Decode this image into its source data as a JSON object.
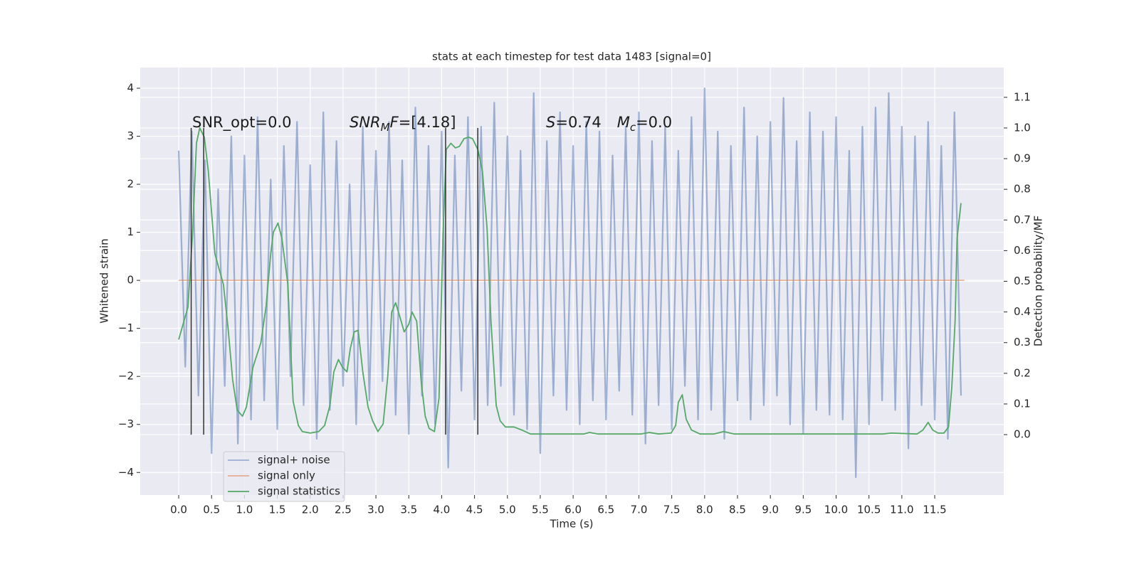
{
  "chart_data": {
    "type": "line",
    "title": "stats at each timestep for test data 1483 [signal=0]",
    "xlabel": "Time (s)",
    "ylabel": "Whitened strain",
    "y2label": "Detection probability/MF",
    "xlim": [
      -0.585,
      12.55
    ],
    "ylim": [
      -4.47,
      4.43
    ],
    "y2lim": [
      -0.197,
      1.197
    ],
    "xticks": [
      {
        "value": 0,
        "label": "0.0"
      },
      0.5,
      {
        "value": 1,
        "label": "1.0"
      },
      1.5,
      {
        "value": 2,
        "label": "2.0"
      },
      2.5,
      {
        "value": 3,
        "label": "3.0"
      },
      3.5,
      {
        "value": 4,
        "label": "4.0"
      },
      4.5,
      {
        "value": 5,
        "label": "5.0"
      },
      5.5,
      {
        "value": 6,
        "label": "6.0"
      },
      6.5,
      {
        "value": 7,
        "label": "7.0"
      },
      7.5,
      {
        "value": 8,
        "label": "8.0"
      },
      8.5,
      {
        "value": 9,
        "label": "9.0"
      },
      9.5,
      {
        "value": 10,
        "label": "10.0"
      },
      10.5,
      {
        "value": 11,
        "label": "11.0"
      },
      11.5
    ],
    "yticks": [
      {
        "value": -4,
        "label": "−4"
      },
      {
        "value": -3,
        "label": "−3"
      },
      {
        "value": -2,
        "label": "−2"
      },
      {
        "value": -1,
        "label": "−1"
      },
      0,
      1,
      2,
      3,
      4
    ],
    "y2ticks": [
      {
        "value": 0,
        "label": "0.0"
      },
      0.1,
      0.2,
      0.3,
      0.4,
      0.5,
      0.6,
      0.7,
      0.8,
      0.9,
      {
        "value": 1,
        "label": "1.0"
      },
      1.1
    ],
    "grid": true,
    "legend": "lower left",
    "series": [
      {
        "name": "signal+ noise",
        "color": "#4c72b0",
        "opacity": 0.5,
        "x": [
          0.0,
          0.1,
          0.2,
          0.3,
          0.4,
          0.5,
          0.6,
          0.7,
          0.8,
          0.9,
          1.0,
          1.1,
          1.2,
          1.3,
          1.4,
          1.5,
          1.6,
          1.7,
          1.8,
          1.9,
          2.0,
          2.1,
          2.2,
          2.3,
          2.4,
          2.5,
          2.6,
          2.7,
          2.8,
          2.9,
          3.0,
          3.1,
          3.2,
          3.3,
          3.4,
          3.5,
          3.6,
          3.7,
          3.8,
          3.9,
          4.0,
          4.1,
          4.2,
          4.3,
          4.4,
          4.5,
          4.6,
          4.7,
          4.8,
          4.9,
          5.0,
          5.1,
          5.2,
          5.3,
          5.4,
          5.5,
          5.6,
          5.7,
          5.8,
          5.9,
          6.0,
          6.1,
          6.2,
          6.3,
          6.4,
          6.5,
          6.6,
          6.7,
          6.8,
          6.9,
          7.0,
          7.1,
          7.2,
          7.3,
          7.4,
          7.5,
          7.6,
          7.7,
          7.8,
          7.9,
          8.0,
          8.1,
          8.2,
          8.3,
          8.4,
          8.5,
          8.6,
          8.7,
          8.8,
          8.9,
          9.0,
          9.1,
          9.2,
          9.3,
          9.4,
          9.5,
          9.6,
          9.7,
          9.8,
          9.9,
          10.0,
          10.1,
          10.2,
          10.3,
          10.4,
          10.5,
          10.6,
          10.7,
          10.8,
          10.9,
          11.0,
          11.1,
          11.2,
          11.3,
          11.4,
          11.5,
          11.6,
          11.7,
          11.8,
          11.9
        ],
        "values": [
          2.7,
          -1.8,
          3.1,
          -2.4,
          2.5,
          -3.6,
          1.9,
          -2.2,
          3.0,
          -3.4,
          2.6,
          -2.9,
          3.4,
          -2.5,
          2.1,
          -3.1,
          2.8,
          -2.0,
          3.3,
          -2.6,
          2.4,
          -3.3,
          3.5,
          -2.7,
          2.9,
          -2.2,
          2.0,
          -3.0,
          3.2,
          -2.5,
          2.7,
          -2.1,
          3.3,
          -2.8,
          2.5,
          -3.2,
          3.6,
          -2.4,
          2.8,
          -3.0,
          3.1,
          -3.9,
          2.6,
          -2.3,
          3.4,
          -2.9,
          3.2,
          -2.6,
          3.7,
          -2.2,
          3.0,
          -2.8,
          2.7,
          -3.1,
          3.9,
          -3.6,
          2.9,
          -2.4,
          3.5,
          -2.7,
          2.8,
          -3.0,
          3.3,
          -2.5,
          3.1,
          -2.9,
          2.6,
          -2.3,
          3.2,
          -2.8,
          3.5,
          -3.4,
          2.9,
          -2.6,
          3.2,
          -3.1,
          2.7,
          -2.2,
          3.4,
          -2.9,
          4.0,
          -2.7,
          3.1,
          -3.3,
          2.8,
          -2.5,
          3.6,
          -2.9,
          3.0,
          -2.6,
          3.3,
          -2.4,
          3.8,
          -3.0,
          2.9,
          -3.2,
          3.5,
          -2.7,
          3.1,
          -2.8,
          3.4,
          -2.9,
          2.7,
          -4.1,
          3.2,
          -3.0,
          3.6,
          -2.5,
          3.9,
          -2.7,
          3.2,
          -3.5,
          3.0,
          -2.6,
          3.3,
          -2.9,
          2.8,
          -3.3,
          3.5,
          -2.4
        ]
      },
      {
        "name": "signal only",
        "color": "#dd8452",
        "opacity": 0.6,
        "x": [
          0.0,
          11.95
        ],
        "values": [
          0,
          0
        ]
      },
      {
        "name": "signal statistics",
        "color": "#55a868",
        "opacity": 1,
        "axis": "y2",
        "x": [
          0.0,
          0.08,
          0.14,
          0.21,
          0.27,
          0.32,
          0.39,
          0.45,
          0.55,
          0.68,
          0.75,
          0.82,
          0.89,
          0.97,
          1.03,
          1.13,
          1.25,
          1.33,
          1.4,
          1.44,
          1.51,
          1.57,
          1.66,
          1.74,
          1.82,
          1.88,
          2.0,
          2.13,
          2.22,
          2.3,
          2.36,
          2.43,
          2.49,
          2.56,
          2.61,
          2.67,
          2.73,
          2.8,
          2.88,
          2.95,
          3.03,
          3.11,
          3.18,
          3.24,
          3.3,
          3.37,
          3.43,
          3.5,
          3.55,
          3.62,
          3.69,
          3.75,
          3.81,
          3.89,
          3.96,
          4.02,
          4.07,
          4.14,
          4.21,
          4.27,
          4.34,
          4.41,
          4.47,
          4.55,
          4.62,
          4.69,
          4.75,
          4.83,
          4.89,
          4.97,
          5.1,
          5.22,
          5.35,
          6.16,
          6.25,
          6.38,
          7.03,
          7.16,
          7.3,
          7.49,
          7.56,
          7.6,
          7.66,
          7.72,
          7.8,
          7.93,
          8.14,
          8.29,
          8.45,
          10.71,
          10.84,
          11.23,
          11.32,
          11.4,
          11.47,
          11.55,
          11.64,
          11.71,
          11.76,
          11.81,
          11.84,
          11.9
        ],
        "values": [
          0.31,
          0.37,
          0.415,
          0.65,
          0.95,
          1.0,
          0.97,
          0.86,
          0.59,
          0.49,
          0.35,
          0.18,
          0.08,
          0.06,
          0.09,
          0.22,
          0.3,
          0.42,
          0.59,
          0.66,
          0.69,
          0.64,
          0.49,
          0.11,
          0.03,
          0.01,
          0.005,
          0.01,
          0.03,
          0.095,
          0.205,
          0.245,
          0.22,
          0.205,
          0.28,
          0.335,
          0.34,
          0.205,
          0.09,
          0.045,
          0.01,
          0.035,
          0.19,
          0.4,
          0.43,
          0.38,
          0.335,
          0.36,
          0.4,
          0.37,
          0.17,
          0.06,
          0.02,
          0.01,
          0.12,
          0.65,
          0.93,
          0.95,
          0.935,
          0.94,
          0.965,
          0.97,
          0.965,
          0.93,
          0.86,
          0.675,
          0.37,
          0.095,
          0.045,
          0.025,
          0.025,
          0.015,
          0.002,
          0.002,
          0.007,
          0.002,
          0.002,
          0.007,
          0.002,
          0.005,
          0.03,
          0.105,
          0.13,
          0.05,
          0.015,
          0.002,
          0.002,
          0.01,
          0.002,
          0.002,
          0.005,
          0.002,
          0.015,
          0.04,
          0.015,
          0.005,
          0.005,
          0.025,
          0.155,
          0.37,
          0.64,
          0.755
        ]
      }
    ],
    "vlines": [
      0.19,
      0.38,
      4.06,
      4.55
    ],
    "vline_range": [
      0,
      1
    ],
    "vline_color": "#333333",
    "annotations": [
      [
        "SNR_opt=0.0"
      ],
      [
        "SNR",
        "M",
        "F",
        "=[4.18]"
      ],
      [
        "S",
        "=0.74",
        "M",
        "c",
        "=0.0"
      ]
    ]
  }
}
